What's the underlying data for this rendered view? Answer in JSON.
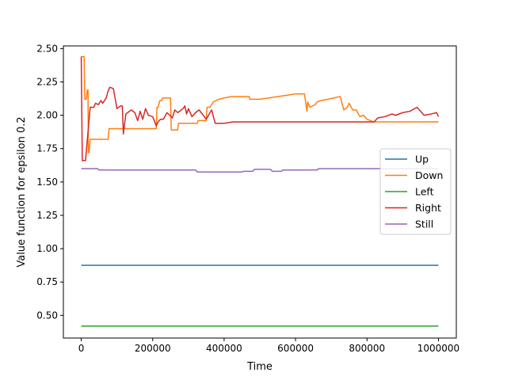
{
  "chart_data": {
    "type": "line",
    "xlabel": "Time",
    "ylabel": "Value function for epsilon 0.2",
    "xlim": [
      -50000,
      1050000
    ],
    "ylim": [
      0.33,
      2.52
    ],
    "x_ticks": [
      0,
      200000,
      400000,
      600000,
      800000,
      1000000
    ],
    "x_tick_labels": [
      "0",
      "200000",
      "400000",
      "600000",
      "800000",
      "1000000"
    ],
    "y_ticks": [
      0.5,
      0.75,
      1.0,
      1.25,
      1.5,
      1.75,
      2.0,
      2.25,
      2.5
    ],
    "y_tick_labels": [
      "0.50",
      "0.75",
      "1.00",
      "1.25",
      "1.50",
      "1.75",
      "2.00",
      "2.25",
      "2.50"
    ],
    "grid": false,
    "legend_position": "center-right",
    "series": [
      {
        "name": "Up",
        "color": "#1f77b4",
        "x": [
          0,
          1000000
        ],
        "y": [
          0.875,
          0.875
        ]
      },
      {
        "name": "Down",
        "color": "#ff7f0e",
        "x": [
          0,
          8000,
          10000,
          14000,
          17000,
          19000,
          20000,
          22000,
          25000,
          50000,
          75000,
          78000,
          120000,
          122000,
          210000,
          212000,
          215000,
          220000,
          225000,
          228000,
          250000,
          252000,
          270000,
          272000,
          325000,
          327000,
          350000,
          352000,
          360000,
          370000,
          385000,
          400000,
          420000,
          470000,
          472000,
          500000,
          525000,
          550000,
          575000,
          600000,
          625000,
          632000,
          634000,
          640000,
          655000,
          660000,
          670000,
          690000,
          725000,
          735000,
          745000,
          750000,
          760000,
          770000,
          780000,
          790000,
          800000,
          820000,
          900000,
          950000,
          1000000
        ],
        "y": [
          2.44,
          2.44,
          2.12,
          2.12,
          2.19,
          2.19,
          1.72,
          1.72,
          1.82,
          1.82,
          1.82,
          1.9,
          1.9,
          1.9,
          1.9,
          2.06,
          2.06,
          2.11,
          2.11,
          2.13,
          2.13,
          1.89,
          1.89,
          1.94,
          1.94,
          1.96,
          1.96,
          2.06,
          2.06,
          2.1,
          2.12,
          2.13,
          2.14,
          2.14,
          2.12,
          2.12,
          2.13,
          2.14,
          2.15,
          2.16,
          2.16,
          2.03,
          2.1,
          2.06,
          2.08,
          2.1,
          2.11,
          2.12,
          2.14,
          2.04,
          2.06,
          2.09,
          2.04,
          2.04,
          1.99,
          2.0,
          1.97,
          1.95,
          1.95,
          1.95,
          1.95
        ]
      },
      {
        "name": "Left",
        "color": "#2ca02c",
        "x": [
          0,
          1000000
        ],
        "y": [
          0.42,
          0.42
        ]
      },
      {
        "name": "Right",
        "color": "#d62728",
        "x": [
          0,
          3000,
          5000,
          10000,
          12000,
          25000,
          27000,
          35000,
          40000,
          48000,
          55000,
          60000,
          70000,
          75000,
          80000,
          90000,
          100000,
          110000,
          115000,
          118000,
          122000,
          125000,
          140000,
          150000,
          158000,
          165000,
          172000,
          180000,
          188000,
          200000,
          210000,
          215000,
          222000,
          230000,
          240000,
          248000,
          255000,
          262000,
          270000,
          285000,
          290000,
          295000,
          300000,
          310000,
          320000,
          330000,
          350000,
          365000,
          375000,
          400000,
          425000,
          500000,
          700000,
          820000,
          830000,
          850000,
          870000,
          880000,
          900000,
          920000,
          940000,
          960000,
          980000,
          995000,
          1000000
        ],
        "y": [
          2.44,
          1.66,
          1.66,
          1.66,
          1.66,
          2.06,
          2.06,
          2.06,
          2.09,
          2.08,
          2.11,
          2.09,
          2.13,
          2.18,
          2.21,
          2.2,
          2.05,
          2.07,
          2.07,
          1.86,
          1.95,
          2.01,
          2.04,
          2.02,
          1.96,
          2.03,
          1.97,
          2.05,
          2.0,
          1.99,
          1.92,
          1.95,
          1.97,
          1.97,
          2.02,
          2.0,
          1.98,
          2.04,
          2.02,
          2.05,
          2.07,
          2.01,
          2.05,
          1.99,
          2.02,
          2.04,
          1.97,
          2.04,
          1.94,
          1.94,
          1.95,
          1.95,
          1.95,
          1.95,
          1.98,
          1.99,
          2.01,
          2.0,
          2.02,
          2.03,
          2.06,
          2.0,
          2.01,
          2.02,
          1.99
        ]
      },
      {
        "name": "Still",
        "color": "#9467bd",
        "x": [
          0,
          45000,
          50000,
          320000,
          325000,
          450000,
          455000,
          480000,
          485000,
          530000,
          535000,
          560000,
          565000,
          660000,
          665000,
          1000000
        ],
        "y": [
          1.6,
          1.6,
          1.59,
          1.59,
          1.575,
          1.575,
          1.58,
          1.58,
          1.595,
          1.595,
          1.58,
          1.58,
          1.59,
          1.59,
          1.6,
          1.6
        ]
      }
    ]
  }
}
